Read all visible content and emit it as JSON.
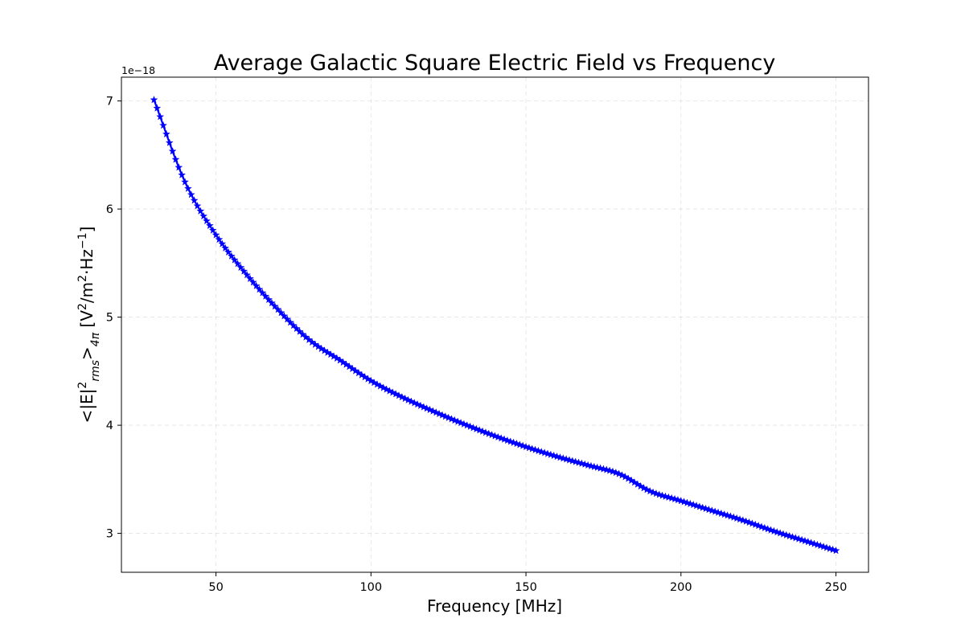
{
  "chart_data": {
    "type": "line",
    "title": "Average Galactic Square Electric Field vs Frequency",
    "xlabel": "Frequency [MHz]",
    "ylabel": {
      "prefix": "<|E|",
      "sup1": "2",
      "sub1": "rms",
      "mid": ">",
      "sub2": "4π",
      "unit_open": " [V",
      "sup2": "2",
      "unit_mid": "/m",
      "sup3": "2",
      "unit_hz": "·Hz",
      "sup4": "−1",
      "unit_close": "]"
    },
    "y_offset_label": "1e−18",
    "xlim": [
      19.5,
      260.5
    ],
    "ylim": [
      2.64,
      7.22
    ],
    "x_ticks": [
      50,
      100,
      150,
      200,
      250
    ],
    "x_tick_labels": [
      "50",
      "100",
      "150",
      "200",
      "250"
    ],
    "y_ticks": [
      3,
      4,
      5,
      6,
      7
    ],
    "y_tick_labels": [
      "3",
      "4",
      "5",
      "6",
      "7"
    ],
    "grid": true,
    "marker": "star",
    "color": "#0000ff",
    "series": [
      {
        "x": [
          30,
          40,
          50,
          60,
          70,
          80,
          90,
          100,
          110,
          120,
          130,
          140,
          150,
          160,
          170,
          180,
          190,
          200,
          210,
          220,
          230,
          240,
          250
        ],
        "values": [
          7.01,
          6.25,
          5.76,
          5.39,
          5.07,
          4.79,
          4.6,
          4.41,
          4.26,
          4.13,
          4.01,
          3.9,
          3.8,
          3.71,
          3.63,
          3.55,
          3.39,
          3.3,
          3.21,
          3.12,
          3.02,
          2.93,
          2.84
        ]
      }
    ]
  }
}
